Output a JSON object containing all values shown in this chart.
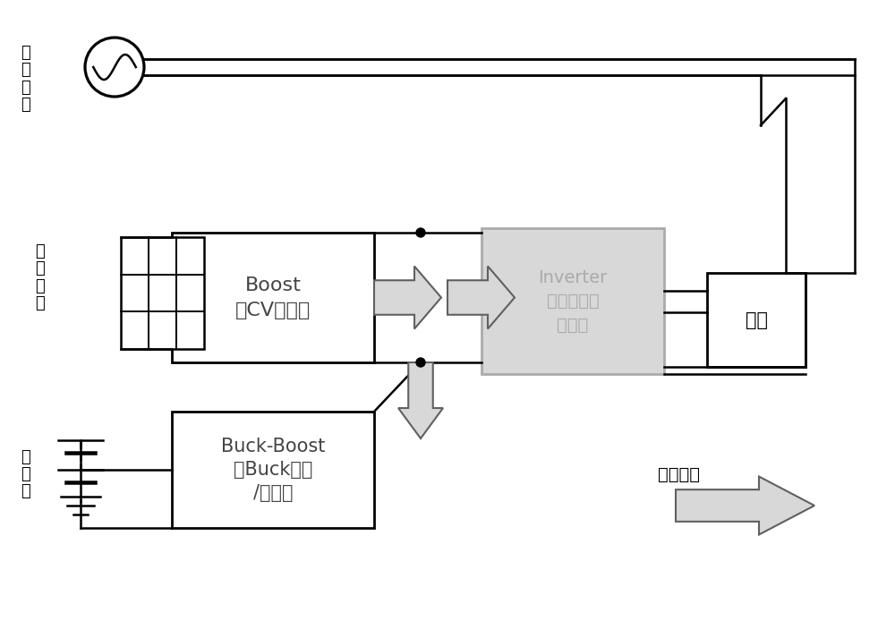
{
  "bg_color": "#ffffff",
  "lc": "#000000",
  "gray_fill": "#d8d8d8",
  "gray_edge": "#aaaaaa",
  "inv_text_color": "#aaaaaa",
  "dark_text": "#333333",
  "label_grid_power": "单相\n电网",
  "label_pv": "光伏\n组件",
  "label_battery": "锂\n电\n池",
  "label_boost": "Boost\n（CV模式）",
  "label_inverter": "Inverter\n（独立逆变\n模式）",
  "label_buckboost": "Buck-Boost\n（Buck模式\n/关闭）",
  "label_load": "负载",
  "label_energy": "能量流向",
  "lw": 1.8
}
